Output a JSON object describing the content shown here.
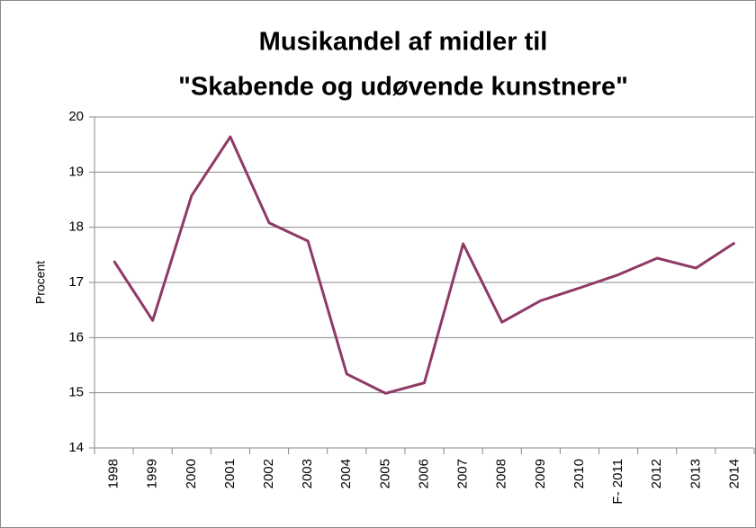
{
  "chart_data": {
    "type": "line",
    "title": [
      "Musikandel af midler til",
      "\"Skabende og udøvende kunstnere\""
    ],
    "y_label": "Procent",
    "categories": [
      "1998",
      "1999",
      "2000",
      "2001",
      "2002",
      "2003",
      "2004",
      "2005",
      "2006",
      "2007",
      "2008",
      "2009",
      "2010",
      "F- 2011",
      "2012",
      "2013",
      "2014"
    ],
    "series": [
      {
        "color": "#8e3a66",
        "values": [
          17.39,
          16.31,
          18.57,
          19.64,
          18.08,
          17.75,
          15.34,
          14.99,
          15.18,
          17.7,
          16.28,
          16.67,
          16.9,
          17.14,
          17.44,
          17.26,
          17.72
        ]
      }
    ],
    "ylim": [
      14,
      20
    ],
    "yticks": [
      14,
      15,
      16,
      17,
      18,
      19,
      20
    ],
    "grid": true
  }
}
